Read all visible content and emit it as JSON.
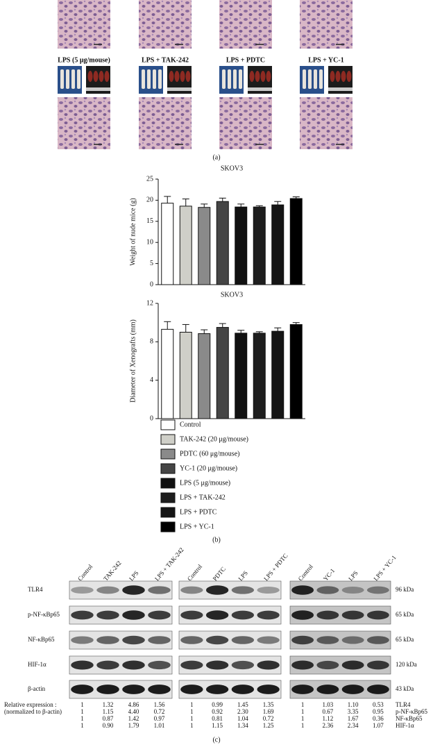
{
  "panel_a": {
    "group_labels": [
      "LPS (5 μg/mouse)",
      "LPS + TAK-242",
      "LPS + PDTC",
      "LPS + YC-1"
    ],
    "caption": "(a)"
  },
  "chart_data": [
    {
      "type": "bar",
      "title": "SKOV3",
      "ylabel": "Weight of nude mice (g)",
      "categories": [
        "Control",
        "TAK-242 (20 μg/mouse)",
        "PDTC (60 μg/mouse)",
        "YC-1 (20 μg/mouse)",
        "LPS (5 μg/mouse)",
        "LPS + TAK-242",
        "LPS + PDTC",
        "LPS + YC-1"
      ],
      "values": [
        19.3,
        18.6,
        18.3,
        19.7,
        18.4,
        18.4,
        18.9,
        20.4
      ],
      "errors": [
        1.6,
        1.7,
        0.8,
        0.8,
        0.7,
        0.3,
        0.8,
        0.4
      ],
      "colors": [
        "#ffffff",
        "#cfcfc8",
        "#8a8a8a",
        "#454545",
        "#111111",
        "#1e1e1e",
        "#151515",
        "#000000"
      ],
      "ylim": [
        0,
        25
      ],
      "yticks": [
        0,
        5,
        10,
        15,
        20,
        25
      ]
    },
    {
      "type": "bar",
      "title": "SKOV3",
      "ylabel": "Diameter of Xenografts (mm)",
      "values": [
        9.3,
        9.0,
        8.85,
        9.5,
        8.9,
        8.9,
        9.1,
        9.8
      ],
      "errors": [
        0.8,
        0.8,
        0.4,
        0.4,
        0.3,
        0.15,
        0.35,
        0.2
      ],
      "colors": [
        "#ffffff",
        "#cfcfc8",
        "#8a8a8a",
        "#454545",
        "#111111",
        "#1e1e1e",
        "#151515",
        "#000000"
      ],
      "ylim": [
        0,
        12
      ],
      "yticks": [
        0,
        4,
        8,
        12
      ]
    }
  ],
  "panel_b": {
    "caption": "(b)"
  },
  "panel_c": {
    "groups": [
      [
        "Control",
        "TAK-242",
        "LPS",
        "LPS + TAK-242"
      ],
      [
        "Control",
        "PDTC",
        "LPS",
        "LPS + PDTC"
      ],
      [
        "Control",
        "YC-1",
        "LPS",
        "LPS + YC-1"
      ]
    ],
    "rows": [
      "TLR4",
      "p-NF-κBp65",
      "NF-κBp65",
      "HIF-1α",
      "β-actin"
    ],
    "sizes": [
      "96 kDa",
      "65 kDa",
      "65 kDa",
      "120 kDa",
      "43 kDa"
    ],
    "expression_label": [
      "Relative expression :",
      "(normalized to β-actin)"
    ],
    "table": {
      "rows": [
        [
          "1",
          "1.32",
          "4.86",
          "1.56",
          "1",
          "0.99",
          "1.45",
          "1.35",
          "1",
          "1.03",
          "1.10",
          "0.53"
        ],
        [
          "1",
          "1.15",
          "4.40",
          "0.72",
          "1",
          "0.92",
          "2.30",
          "1.69",
          "1",
          "0.67",
          "3.35",
          "0.95"
        ],
        [
          "1",
          "0.87",
          "1.42",
          "0.97",
          "1",
          "0.81",
          "1.04",
          "0.72",
          "1",
          "1.12",
          "1.67",
          "0.36"
        ],
        [
          "1",
          "0.90",
          "1.79",
          "1.01",
          "1",
          "1.15",
          "1.34",
          "1.25",
          "1",
          "2.36",
          "2.34",
          "1.07"
        ]
      ],
      "row_labels": [
        "TLR4",
        "p-NF-κBp65",
        "NF-κBp65",
        "HIF-1α"
      ]
    },
    "caption": "(c)"
  }
}
